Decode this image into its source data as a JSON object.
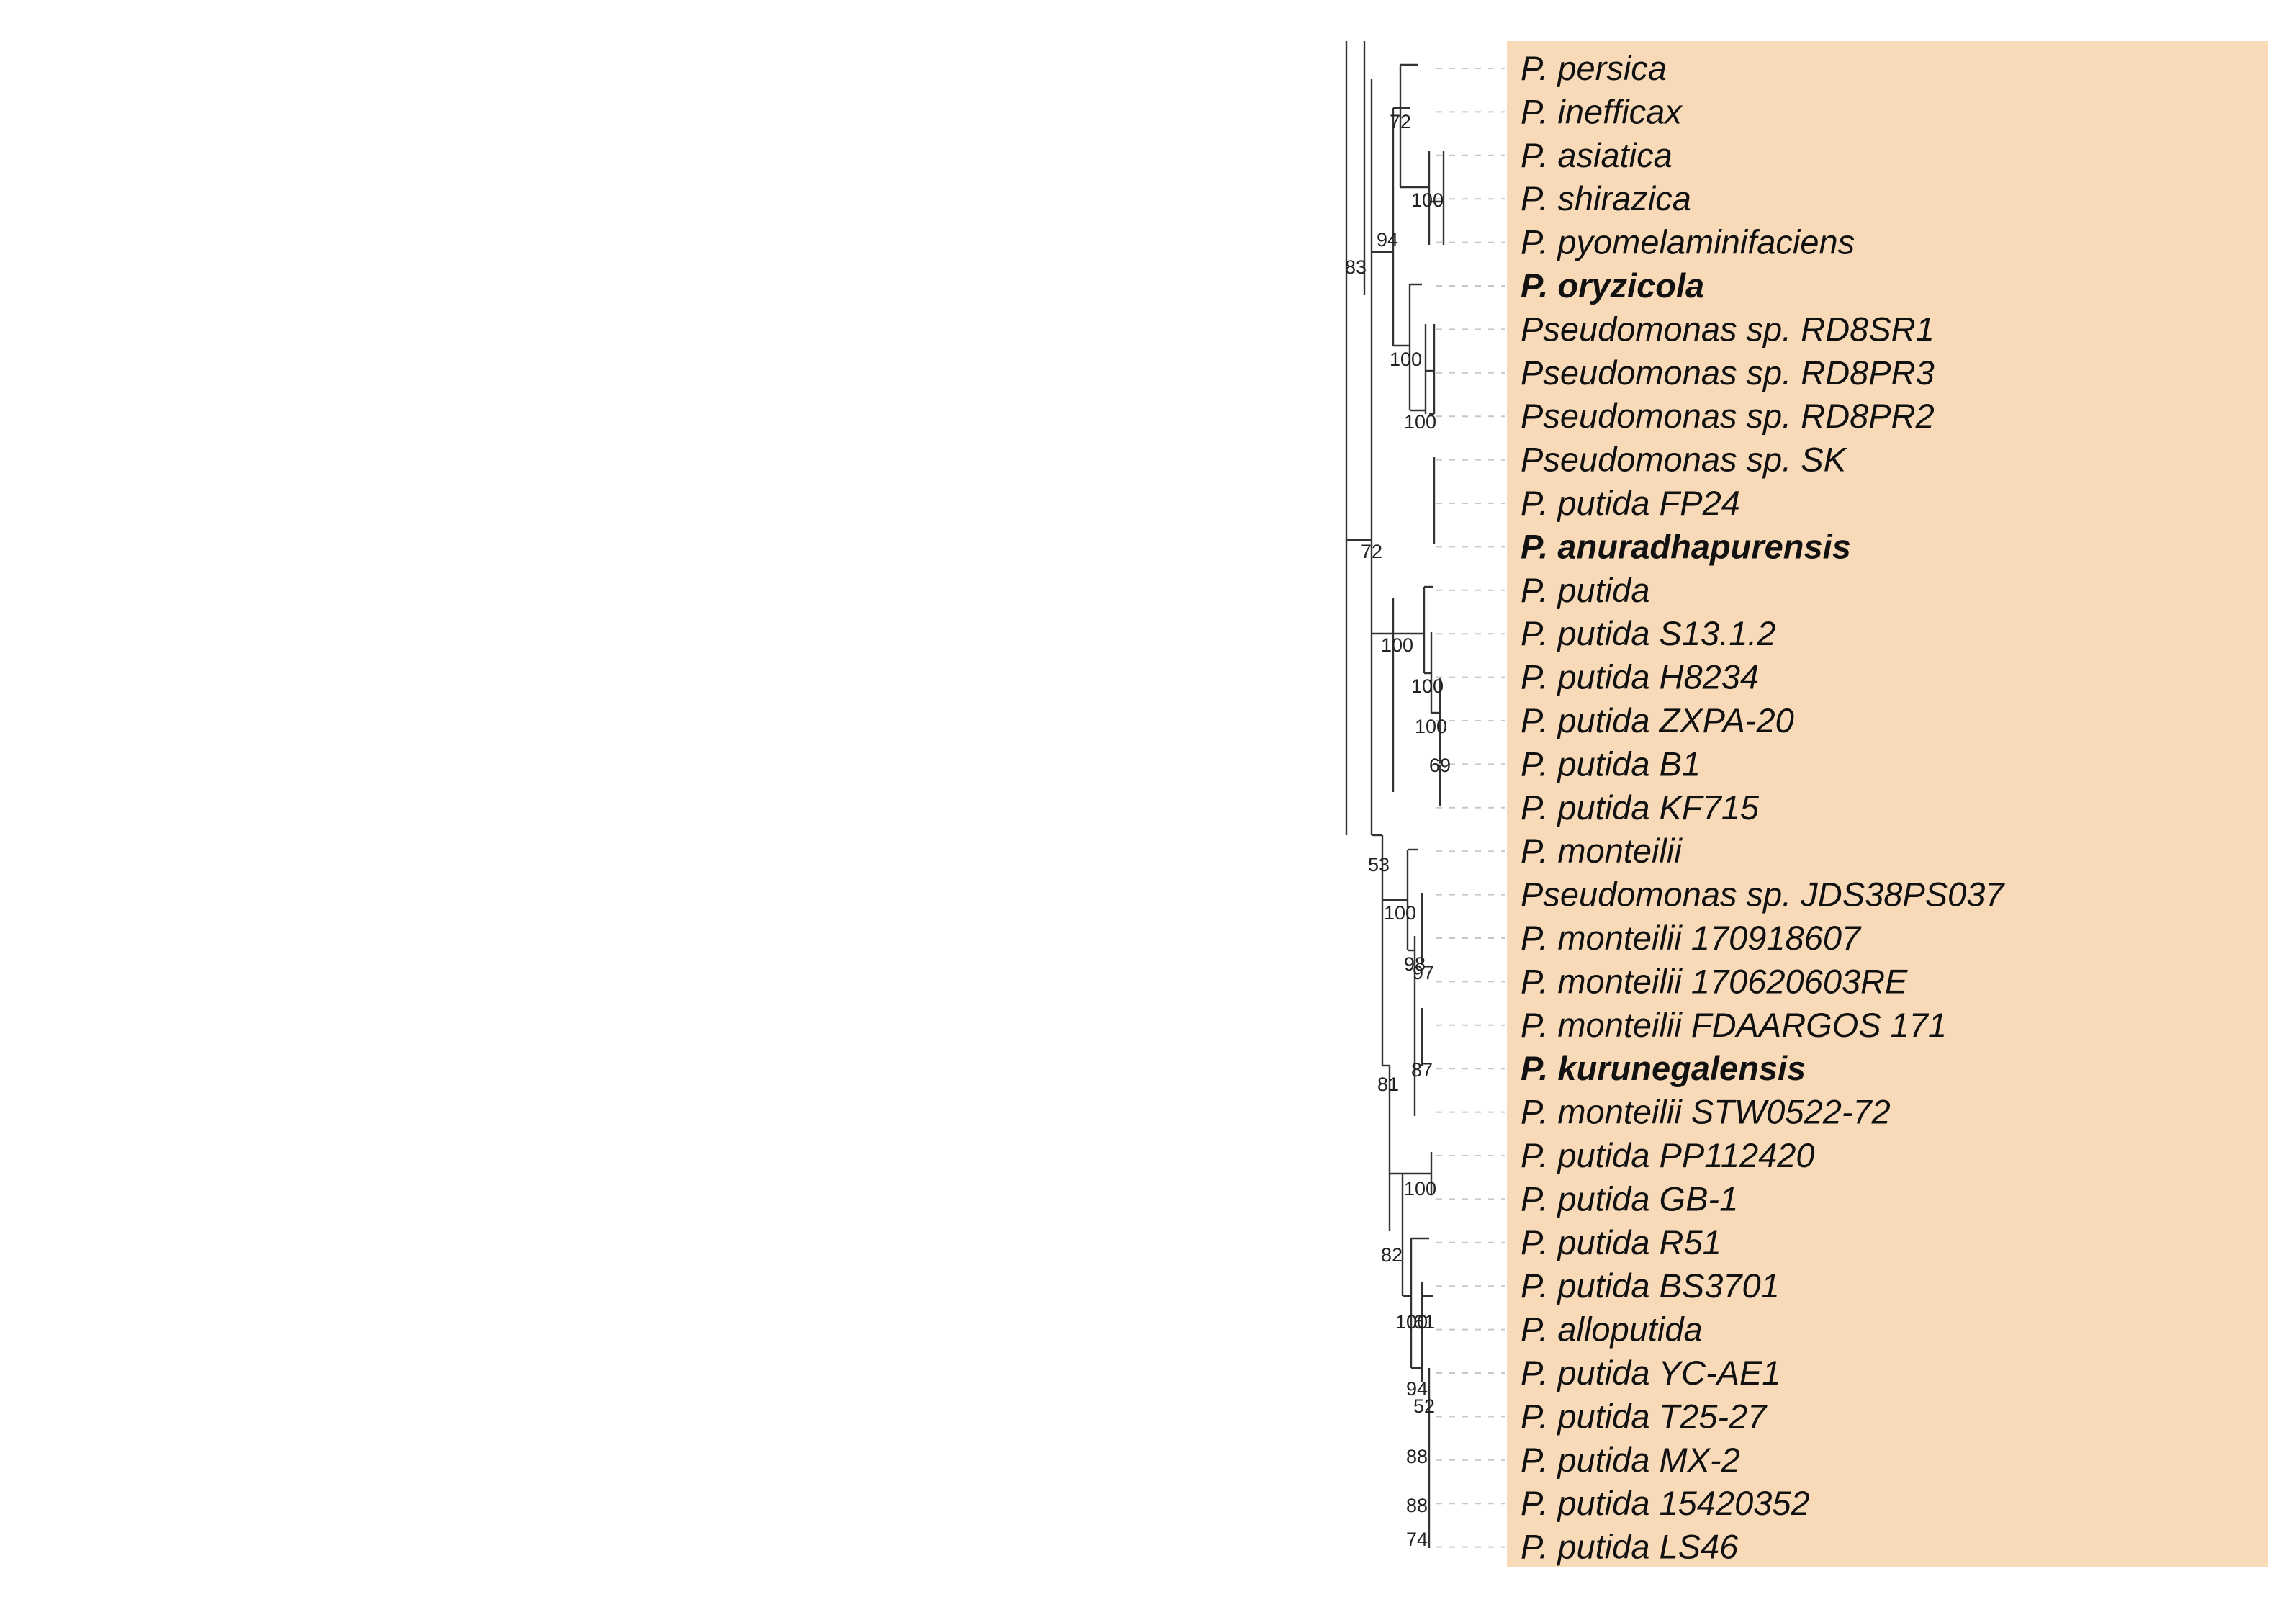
{
  "figure": {
    "type": "phylogenetic-tree",
    "highlight_color": "#f8dab8",
    "branch_color": "#333333"
  },
  "taxa": [
    {
      "label": "P. persica",
      "bold": false
    },
    {
      "label": "P. inefficax",
      "bold": false
    },
    {
      "label": "P. asiatica",
      "bold": false
    },
    {
      "label": "P. shirazica",
      "bold": false
    },
    {
      "label": "P. pyomelaminifaciens",
      "bold": false
    },
    {
      "label": "P. oryzicola",
      "bold": true
    },
    {
      "label": "Pseudomonas sp. RD8SR1",
      "bold": false
    },
    {
      "label": "Pseudomonas sp. RD8PR3",
      "bold": false
    },
    {
      "label": "Pseudomonas sp. RD8PR2",
      "bold": false
    },
    {
      "label": "Pseudomonas sp. SK",
      "bold": false
    },
    {
      "label": "P. putida FP24",
      "bold": false
    },
    {
      "label": "P. anuradhapurensis",
      "bold": true
    },
    {
      "label": "P. putida",
      "bold": false
    },
    {
      "label": "P. putida S13.1.2",
      "bold": false
    },
    {
      "label": "P. putida H8234",
      "bold": false
    },
    {
      "label": "P. putida ZXPA-20",
      "bold": false
    },
    {
      "label": "P. putida B1",
      "bold": false
    },
    {
      "label": "P. putida KF715",
      "bold": false
    },
    {
      "label": "P. monteilii",
      "bold": false
    },
    {
      "label": "Pseudomonas sp. JDS38PS037",
      "bold": false
    },
    {
      "label": "P. monteilii 170918607",
      "bold": false
    },
    {
      "label": "P. monteilii 170620603RE",
      "bold": false
    },
    {
      "label": "P. monteilii FDAARGOS 171",
      "bold": false
    },
    {
      "label": "P. kurunegalensis",
      "bold": true
    },
    {
      "label": "P. monteilii STW0522-72",
      "bold": false
    },
    {
      "label": "P. putida PP112420",
      "bold": false
    },
    {
      "label": "P. putida GB-1",
      "bold": false
    },
    {
      "label": "P. putida R51",
      "bold": false
    },
    {
      "label": "P. putida BS3701",
      "bold": false
    },
    {
      "label": "P. alloputida",
      "bold": false
    },
    {
      "label": "P. putida YC-AE1",
      "bold": false
    },
    {
      "label": "P. putida T25-27",
      "bold": false
    },
    {
      "label": "P. putida MX-2",
      "bold": false
    },
    {
      "label": "P. putida 15420352",
      "bold": false
    },
    {
      "label": "P. putida LS46",
      "bold": false
    }
  ],
  "bootstrap_values": [
    "83",
    "72",
    "94",
    "100",
    "72",
    "100",
    "100",
    "53",
    "100",
    "100",
    "100",
    "69",
    "81",
    "100",
    "98",
    "97",
    "87",
    "82",
    "100",
    "100",
    "61",
    "94",
    "52",
    "88",
    "88",
    "74"
  ]
}
